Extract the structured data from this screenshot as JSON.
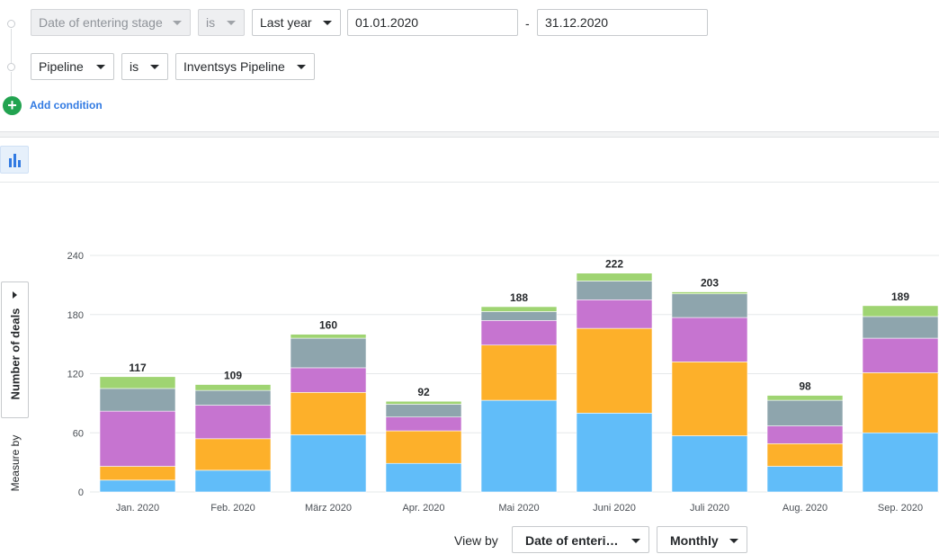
{
  "filters": [
    {
      "field": "Date of entering stage",
      "operator": "is",
      "value": "Last year",
      "from": "01.01.2020",
      "separator": "-",
      "to": "31.12.2020"
    },
    {
      "field": "Pipeline",
      "operator": "is",
      "value": "Inventsys Pipeline"
    }
  ],
  "add_condition": {
    "icon": "+",
    "label": "Add condition"
  },
  "chart_type_icon": "bar-chart-icon",
  "measure": {
    "label": "Measure by",
    "value": "Number of deals"
  },
  "view_by": {
    "label": "View by",
    "field": "Date of enteri…",
    "interval": "Monthly"
  },
  "colors": {
    "blue": "#61bdf9",
    "orange": "#fdb02a",
    "purple": "#c674d0",
    "gray": "#8ea5ad",
    "green": "#9fd472"
  },
  "chart_data": {
    "type": "bar",
    "stacked": true,
    "categories": [
      "Jan. 2020",
      "Feb. 2020",
      "März 2020",
      "Apr. 2020",
      "Mai 2020",
      "Juni 2020",
      "Juli 2020",
      "Aug. 2020",
      "Sep. 2020"
    ],
    "series": [
      {
        "color": "#61bdf9",
        "values": [
          12,
          22,
          58,
          29,
          93,
          80,
          57,
          26,
          60
        ]
      },
      {
        "color": "#fdb02a",
        "values": [
          14,
          32,
          43,
          33,
          56,
          86,
          75,
          23,
          61
        ]
      },
      {
        "color": "#c674d0",
        "values": [
          56,
          34,
          25,
          14,
          25,
          29,
          45,
          18,
          35
        ]
      },
      {
        "color": "#8ea5ad",
        "values": [
          23,
          15,
          30,
          13,
          9,
          19,
          24,
          26,
          22
        ]
      },
      {
        "color": "#9fd472",
        "values": [
          12,
          6,
          4,
          3,
          5,
          8,
          2,
          5,
          11
        ]
      }
    ],
    "totals": [
      117,
      109,
      160,
      92,
      188,
      222,
      203,
      98,
      189
    ],
    "yticks": [
      0,
      60,
      120,
      180,
      240
    ],
    "ylim": [
      0,
      240
    ],
    "grid": true
  }
}
